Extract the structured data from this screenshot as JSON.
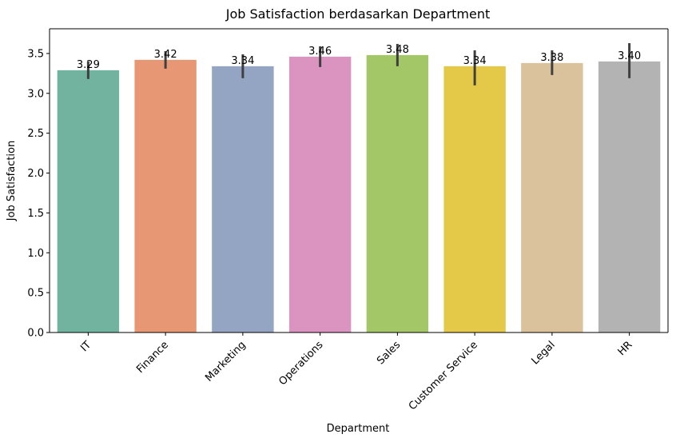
{
  "chart_data": {
    "type": "bar",
    "title": "Job Satisfaction berdasarkan Department",
    "xlabel": "Department",
    "ylabel": "Job Satisfaction",
    "categories": [
      "IT",
      "Finance",
      "Marketing",
      "Operations",
      "Sales",
      "Customer Service",
      "Legal",
      "HR"
    ],
    "values": [
      3.29,
      3.42,
      3.34,
      3.46,
      3.48,
      3.34,
      3.38,
      3.4
    ],
    "value_labels": [
      "3.29",
      "3.42",
      "3.34",
      "3.46",
      "3.48",
      "3.34",
      "3.38",
      "3.40"
    ],
    "error_low": [
      3.18,
      3.31,
      3.19,
      3.33,
      3.34,
      3.1,
      3.23,
      3.19
    ],
    "error_high": [
      3.4,
      3.53,
      3.49,
      3.59,
      3.62,
      3.54,
      3.54,
      3.63
    ],
    "colors": [
      "#72b3a0",
      "#e89774",
      "#94a4c3",
      "#db94bf",
      "#a3c766",
      "#e4c949",
      "#dac29c",
      "#b3b3b3"
    ],
    "ylim": [
      0,
      3.81
    ],
    "yticks": [
      "0.0",
      "0.5",
      "1.0",
      "1.5",
      "2.0",
      "2.5",
      "3.0",
      "3.5"
    ],
    "grid": false,
    "legend": "none"
  }
}
